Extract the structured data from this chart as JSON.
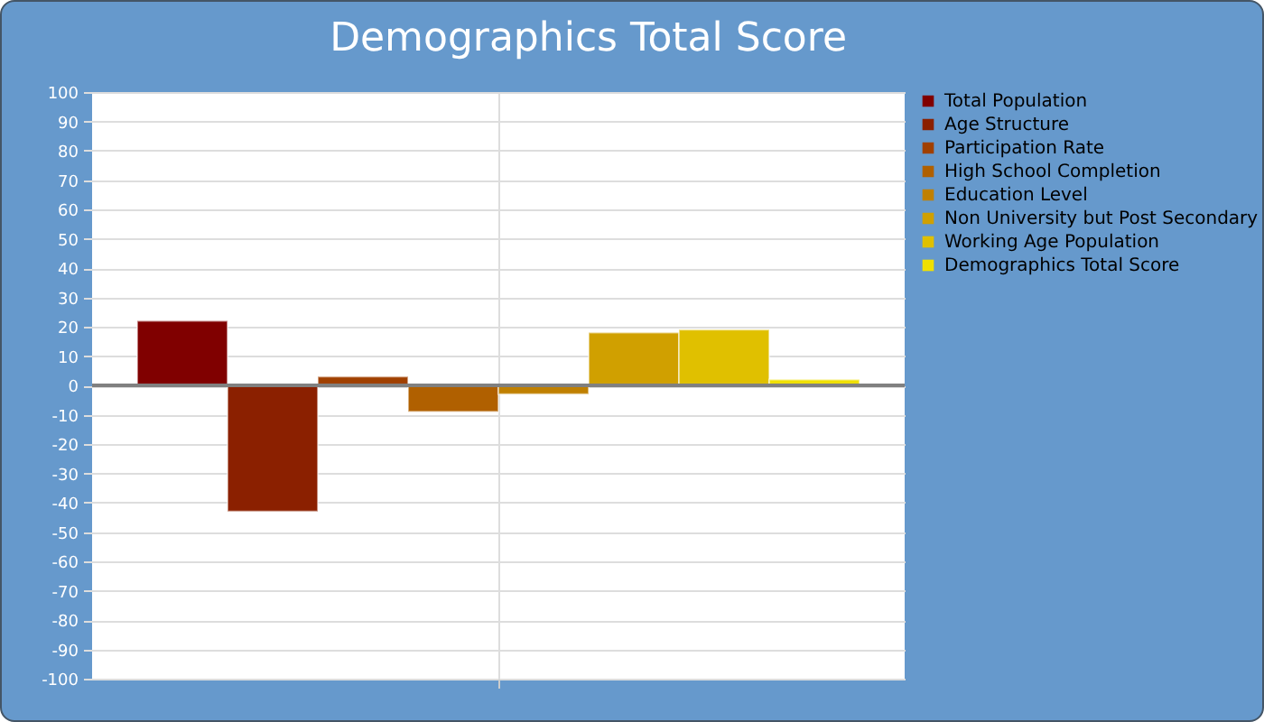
{
  "chart_data": {
    "type": "bar",
    "title": "Demographics Total Score",
    "categories": [
      null
    ],
    "series": [
      {
        "name": "Total Population",
        "color": "#800000",
        "values": [
          22
        ]
      },
      {
        "name": "Age Structure",
        "color": "#8b2000",
        "values": [
          -43
        ]
      },
      {
        "name": "Participation Rate",
        "color": "#a04000",
        "values": [
          3
        ]
      },
      {
        "name": "High School Completion",
        "color": "#b06000",
        "values": [
          -9
        ]
      },
      {
        "name": "Education Level",
        "color": "#c08000",
        "values": [
          -3
        ]
      },
      {
        "name": "Non University but Post Secondary",
        "color": "#d0a000",
        "values": [
          18
        ]
      },
      {
        "name": "Working Age Population",
        "color": "#e0c000",
        "values": [
          19
        ]
      },
      {
        "name": "Demographics Total Score",
        "color": "#f0e000",
        "values": [
          2
        ]
      }
    ],
    "ylim": [
      -100,
      100
    ],
    "yticks": [
      -100,
      -90,
      -80,
      -70,
      -60,
      -50,
      -40,
      -30,
      -20,
      -10,
      0,
      10,
      20,
      30,
      40,
      50,
      60,
      70,
      80,
      90,
      100
    ],
    "ref_lines": [
      {
        "axis": "y",
        "value": 0,
        "color": "#808080"
      }
    ],
    "grid": true,
    "legend": "right",
    "tick_labels": "y"
  }
}
